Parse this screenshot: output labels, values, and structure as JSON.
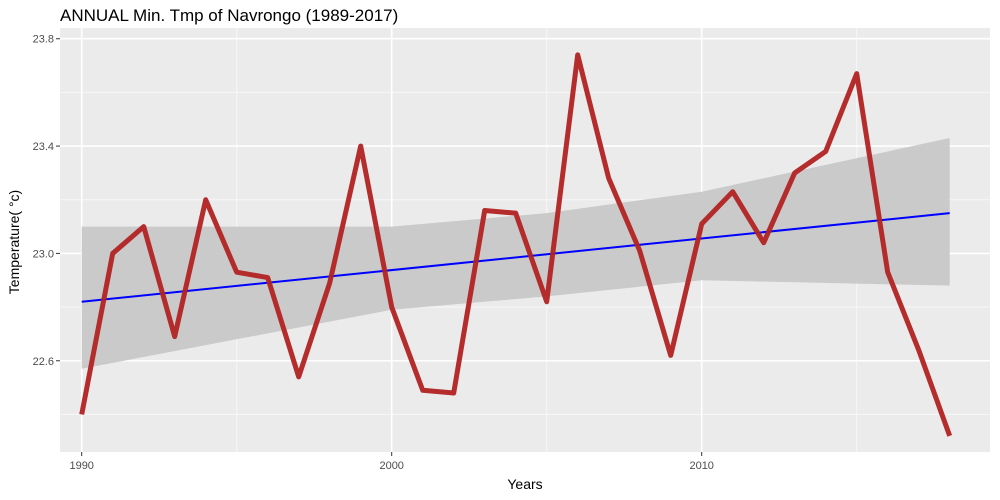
{
  "chart_data": {
    "type": "line",
    "title": "ANNUAL Min. Tmp of Navrongo (1989-2017)",
    "xlabel": "Years",
    "ylabel": "Temperature( °c)",
    "xlim": [
      1989.3,
      2019.3
    ],
    "ylim": [
      22.26,
      23.84
    ],
    "x_ticks": [
      1990,
      2000,
      2010
    ],
    "y_ticks": [
      22.6,
      23.0,
      23.4,
      23.8
    ],
    "grid": true,
    "series": [
      {
        "color": "#b22222",
        "x": [
          1990,
          1991,
          1992,
          1993,
          1994,
          1995,
          1996,
          1997,
          1998,
          1999,
          2000,
          2001,
          2002,
          2003,
          2004,
          2005,
          2006,
          2007,
          2008,
          2009,
          2010,
          2011,
          2012,
          2013,
          2014,
          2015,
          2016,
          2017,
          2018
        ],
        "values": [
          22.4,
          23.0,
          23.1,
          22.69,
          23.2,
          22.93,
          22.91,
          22.54,
          22.89,
          23.4,
          22.8,
          22.49,
          22.48,
          23.16,
          23.15,
          22.82,
          23.74,
          23.28,
          23.01,
          22.62,
          23.11,
          23.23,
          23.04,
          23.3,
          23.38,
          23.67,
          22.93,
          22.64,
          22.32
        ]
      }
    ],
    "trend": {
      "color": "#0000ff",
      "x": [
        1990,
        2018
      ],
      "values": [
        22.82,
        23.15
      ]
    },
    "confidence_band": {
      "color": "#c8c8c8",
      "x": [
        1990,
        2000,
        2005,
        2010,
        2018
      ],
      "upper": [
        23.1,
        23.1,
        23.15,
        23.23,
        23.43
      ],
      "lower": [
        22.57,
        22.79,
        22.84,
        22.9,
        22.88
      ]
    }
  }
}
